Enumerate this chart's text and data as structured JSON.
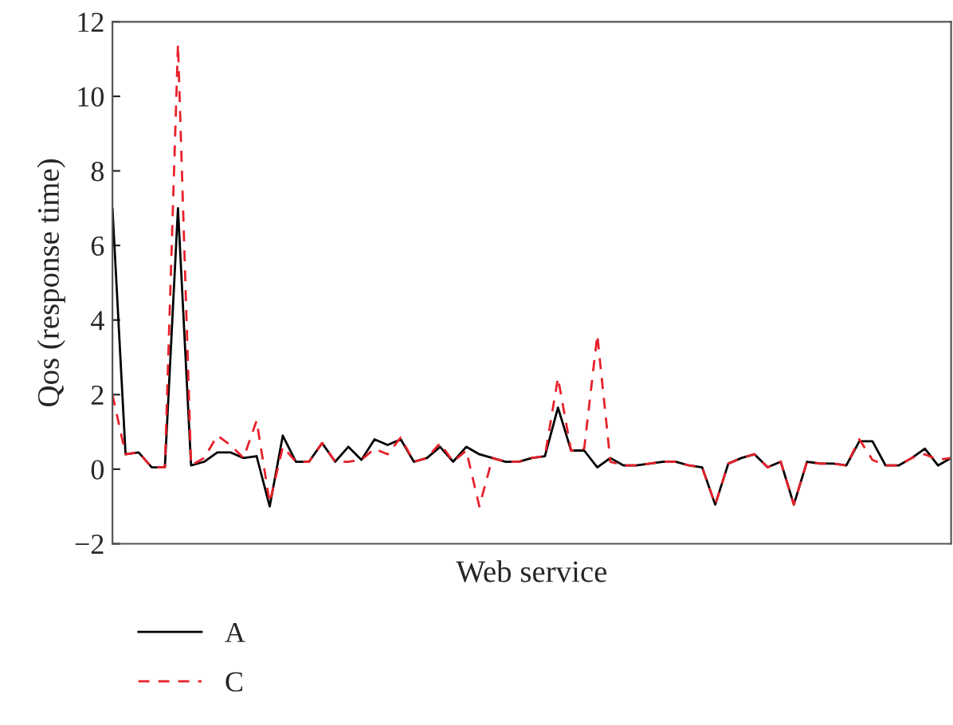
{
  "chart_data": {
    "type": "line",
    "xlabel": "Web service",
    "ylabel": "Qos (response time)",
    "categories": [
      null,
      null,
      null,
      null,
      null,
      null,
      null,
      null,
      null,
      null,
      null,
      null,
      null,
      null,
      null,
      null,
      null,
      null,
      null,
      null,
      null,
      null,
      null,
      null,
      null,
      null,
      null,
      null,
      null,
      null,
      null,
      null,
      null,
      null,
      null,
      null,
      null,
      null,
      null,
      null,
      null,
      null,
      null,
      null,
      null,
      null,
      null,
      null,
      null,
      null,
      null,
      null,
      null,
      null,
      null,
      null,
      null,
      null,
      null,
      null,
      null,
      null,
      null,
      null,
      null
    ],
    "series": [
      {
        "name": "A",
        "color": "#000000",
        "line_style": "solid",
        "values": [
          7.0,
          0.4,
          0.45,
          0.05,
          0.05,
          7.0,
          0.1,
          0.2,
          0.45,
          0.45,
          0.3,
          0.35,
          -1.0,
          0.9,
          0.2,
          0.2,
          0.7,
          0.2,
          0.6,
          0.25,
          0.8,
          0.65,
          0.8,
          0.2,
          0.3,
          0.6,
          0.2,
          0.6,
          0.4,
          0.3,
          0.2,
          0.2,
          0.3,
          0.35,
          1.65,
          0.5,
          0.5,
          0.05,
          0.3,
          0.1,
          0.1,
          0.15,
          0.2,
          0.2,
          0.1,
          0.05,
          -0.95,
          0.15,
          0.3,
          0.4,
          0.05,
          0.2,
          -0.95,
          0.2,
          0.15,
          0.15,
          0.1,
          0.75,
          0.75,
          0.1,
          0.1,
          0.3,
          0.55,
          0.1,
          0.3
        ]
      },
      {
        "name": "C",
        "color": "#e8202a",
        "line_style": "dashed",
        "values": [
          2.0,
          0.4,
          0.45,
          0.05,
          0.05,
          11.4,
          0.1,
          0.3,
          0.9,
          0.65,
          0.3,
          1.3,
          -0.9,
          0.6,
          0.2,
          0.2,
          0.7,
          0.2,
          0.2,
          0.25,
          0.55,
          0.4,
          0.85,
          0.2,
          0.3,
          0.7,
          0.2,
          0.5,
          -1.0,
          0.3,
          0.2,
          0.2,
          0.3,
          0.35,
          2.45,
          0.5,
          0.55,
          3.6,
          0.2,
          0.1,
          0.1,
          0.15,
          0.2,
          0.2,
          0.1,
          0.05,
          -0.95,
          0.15,
          0.3,
          0.4,
          0.05,
          0.2,
          -0.95,
          0.2,
          0.15,
          0.15,
          0.1,
          0.8,
          0.25,
          0.1,
          0.1,
          0.3,
          0.4,
          0.25,
          0.3
        ]
      }
    ],
    "ylim": [
      -2,
      12
    ],
    "yticks": [
      {
        "value": -2,
        "label": "−2"
      },
      0,
      2,
      4,
      6,
      8,
      10,
      12
    ],
    "tick_labels": "y",
    "grid": false,
    "legend": "bottom left",
    "marker": "none"
  }
}
